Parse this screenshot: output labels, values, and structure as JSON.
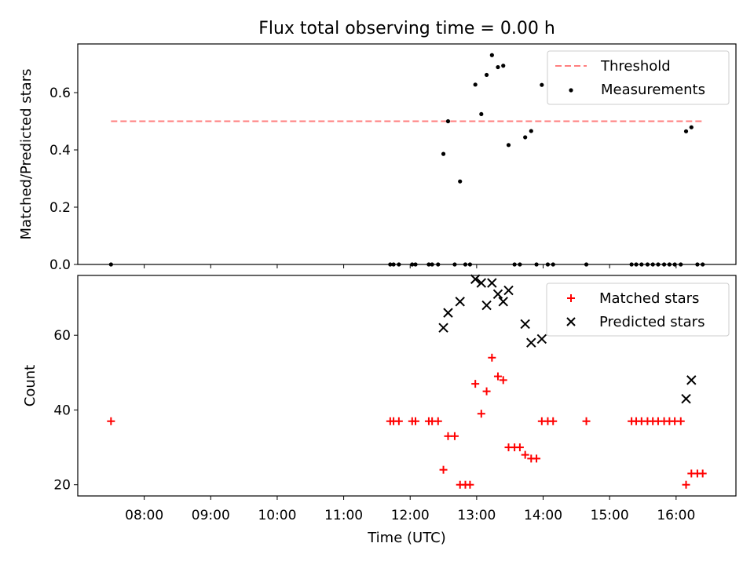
{
  "figure": {
    "title": "Flux total observing time = 0.00 h",
    "xlabel": "Time (UTC)",
    "x_tick_labels": [
      "08:00",
      "09:00",
      "10:00",
      "11:00",
      "12:00",
      "13:00",
      "14:00",
      "15:00",
      "16:00"
    ]
  },
  "chart_data": [
    {
      "type": "scatter",
      "title": "Flux total observing time = 0.00 h",
      "xlabel": "",
      "ylabel": "Matched/Predicted stars",
      "x_unit": "hours UTC",
      "xlim": [
        7.0,
        16.9
      ],
      "ylim": [
        0.0,
        0.77
      ],
      "y_ticks": [
        0.0,
        0.2,
        0.4,
        0.6
      ],
      "y_tick_labels": [
        "0.0",
        "0.2",
        "0.4",
        "0.6"
      ],
      "legend": {
        "placement": "top-right",
        "entries": [
          "Threshold",
          "Measurements"
        ]
      },
      "grid": false,
      "series": [
        {
          "name": "Threshold",
          "style": "dashed-line",
          "color": "#ff7f7f",
          "points": [
            [
              7.5,
              0.5
            ],
            [
              16.4,
              0.5
            ]
          ]
        },
        {
          "name": "Measurements",
          "style": "dot",
          "color": "#000000",
          "points": [
            [
              7.5,
              0.0
            ],
            [
              11.7,
              0.0
            ],
            [
              11.75,
              0.0
            ],
            [
              11.83,
              0.0
            ],
            [
              12.03,
              0.0
            ],
            [
              12.08,
              0.0
            ],
            [
              12.28,
              0.0
            ],
            [
              12.33,
              0.0
            ],
            [
              12.42,
              0.0
            ],
            [
              12.5,
              0.386
            ],
            [
              12.57,
              0.5
            ],
            [
              12.67,
              0.0
            ],
            [
              12.75,
              0.29
            ],
            [
              12.83,
              0.0
            ],
            [
              12.9,
              0.0
            ],
            [
              12.98,
              0.628
            ],
            [
              13.07,
              0.525
            ],
            [
              13.15,
              0.662
            ],
            [
              13.23,
              0.731
            ],
            [
              13.32,
              0.689
            ],
            [
              13.4,
              0.694
            ],
            [
              13.48,
              0.417
            ],
            [
              13.57,
              0.0
            ],
            [
              13.65,
              0.0
            ],
            [
              13.73,
              0.444
            ],
            [
              13.82,
              0.466
            ],
            [
              13.9,
              0.0
            ],
            [
              13.98,
              0.627
            ],
            [
              14.07,
              0.0
            ],
            [
              14.15,
              0.0
            ],
            [
              14.65,
              0.0
            ],
            [
              15.33,
              0.0
            ],
            [
              15.4,
              0.0
            ],
            [
              15.48,
              0.0
            ],
            [
              15.57,
              0.0
            ],
            [
              15.65,
              0.0
            ],
            [
              15.73,
              0.0
            ],
            [
              15.82,
              0.0
            ],
            [
              15.9,
              0.0
            ],
            [
              15.98,
              0.0
            ],
            [
              16.07,
              0.0
            ],
            [
              16.15,
              0.465
            ],
            [
              16.23,
              0.479
            ],
            [
              16.32,
              0.0
            ],
            [
              16.4,
              0.0
            ]
          ]
        }
      ]
    },
    {
      "type": "scatter",
      "title": "",
      "xlabel": "Time (UTC)",
      "ylabel": "Count",
      "x_unit": "hours UTC",
      "xlim": [
        7.0,
        16.9
      ],
      "ylim": [
        17,
        76
      ],
      "y_ticks": [
        20,
        40,
        60
      ],
      "y_tick_labels": [
        "20",
        "40",
        "60"
      ],
      "legend": {
        "placement": "top-right",
        "entries": [
          "Matched stars",
          "Predicted stars"
        ]
      },
      "grid": false,
      "series": [
        {
          "name": "Matched stars",
          "style": "plus",
          "color": "#ff0000",
          "points": [
            [
              7.5,
              37
            ],
            [
              11.7,
              37
            ],
            [
              11.75,
              37
            ],
            [
              11.83,
              37
            ],
            [
              12.03,
              37
            ],
            [
              12.08,
              37
            ],
            [
              12.28,
              37
            ],
            [
              12.33,
              37
            ],
            [
              12.42,
              37
            ],
            [
              12.5,
              24
            ],
            [
              12.57,
              33
            ],
            [
              12.67,
              33
            ],
            [
              12.75,
              20
            ],
            [
              12.83,
              20
            ],
            [
              12.9,
              20
            ],
            [
              12.98,
              47
            ],
            [
              13.07,
              39
            ],
            [
              13.15,
              45
            ],
            [
              13.23,
              54
            ],
            [
              13.32,
              49
            ],
            [
              13.4,
              48
            ],
            [
              13.48,
              30
            ],
            [
              13.57,
              30
            ],
            [
              13.65,
              30
            ],
            [
              13.73,
              28
            ],
            [
              13.82,
              27
            ],
            [
              13.9,
              27
            ],
            [
              13.98,
              37
            ],
            [
              14.07,
              37
            ],
            [
              14.15,
              37
            ],
            [
              14.65,
              37
            ],
            [
              15.33,
              37
            ],
            [
              15.4,
              37
            ],
            [
              15.48,
              37
            ],
            [
              15.57,
              37
            ],
            [
              15.65,
              37
            ],
            [
              15.73,
              37
            ],
            [
              15.82,
              37
            ],
            [
              15.9,
              37
            ],
            [
              15.98,
              37
            ],
            [
              16.07,
              37
            ],
            [
              16.15,
              20
            ],
            [
              16.23,
              23
            ],
            [
              16.32,
              23
            ],
            [
              16.4,
              23
            ]
          ]
        },
        {
          "name": "Predicted stars",
          "style": "x",
          "color": "#000000",
          "points": [
            [
              12.5,
              62
            ],
            [
              12.57,
              66
            ],
            [
              12.75,
              69
            ],
            [
              12.98,
              75
            ],
            [
              13.07,
              74
            ],
            [
              13.15,
              68
            ],
            [
              13.23,
              74
            ],
            [
              13.32,
              71
            ],
            [
              13.4,
              69
            ],
            [
              13.48,
              72
            ],
            [
              13.73,
              63
            ],
            [
              13.82,
              58
            ],
            [
              13.98,
              59
            ],
            [
              16.15,
              43
            ],
            [
              16.23,
              48
            ]
          ]
        }
      ]
    }
  ]
}
